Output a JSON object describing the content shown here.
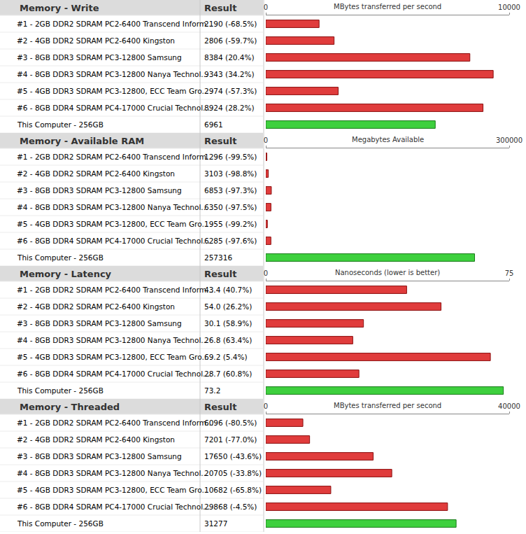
{
  "chart_data": [
    {
      "type": "bar",
      "orientation": "horizontal",
      "title": "Memory - Write",
      "xlabel": "MBytes transferred per second",
      "annotations": [
        "Result"
      ],
      "categories": [
        "#1 - 2GB DDR2 SDRAM PC2-6400 Transcend Inform...",
        "#2 - 4GB DDR2 SDRAM PC2-6400 Kingston",
        "#3 - 8GB DDR3 SDRAM PC3-12800 Samsung",
        "#4 - 8GB DDR3 SDRAM PC3-12800 Nanya Technol...",
        "#5 - 4GB DDR3 SDRAM PC3-12800, ECC Team Gro...",
        "#6 - 8GB DDR4 SDRAM PC4-17000 Crucial Technol...",
        "This Computer - 256GB"
      ],
      "values": [
        2190,
        2806,
        8384,
        9343,
        2974,
        8924,
        6961
      ],
      "value_labels": [
        "2190 (-68.5%)",
        "2806 (-59.7%)",
        "8384 (20.4%)",
        "9343 (34.2%)",
        "2974 (-57.3%)",
        "8924 (28.2%)",
        "6961"
      ],
      "data_labels": true,
      "colors": [
        "#e03c3c",
        "#e03c3c",
        "#e03c3c",
        "#e03c3c",
        "#e03c3c",
        "#e03c3c",
        "#3ed03e"
      ],
      "xlim": [
        0,
        10000
      ],
      "xticks": [
        0,
        10000
      ],
      "grid": false
    },
    {
      "type": "bar",
      "orientation": "horizontal",
      "title": "Memory - Available RAM",
      "xlabel": "Megabytes Available",
      "annotations": [
        "Result"
      ],
      "categories": [
        "#1 - 2GB DDR2 SDRAM PC2-6400 Transcend Inform...",
        "#2 - 4GB DDR2 SDRAM PC2-6400 Kingston",
        "#3 - 8GB DDR3 SDRAM PC3-12800 Samsung",
        "#4 - 8GB DDR3 SDRAM PC3-12800 Nanya Technol...",
        "#5 - 4GB DDR3 SDRAM PC3-12800, ECC Team Gro...",
        "#6 - 8GB DDR4 SDRAM PC4-17000 Crucial Technol...",
        "This Computer - 256GB"
      ],
      "values": [
        1296,
        3103,
        6853,
        6350,
        1955,
        6285,
        257316
      ],
      "value_labels": [
        "1296 (-99.5%)",
        "3103 (-98.8%)",
        "6853 (-97.3%)",
        "6350 (-97.5%)",
        "1955 (-99.2%)",
        "6285 (-97.6%)",
        "257316"
      ],
      "data_labels": true,
      "colors": [
        "#e03c3c",
        "#e03c3c",
        "#e03c3c",
        "#e03c3c",
        "#e03c3c",
        "#e03c3c",
        "#3ed03e"
      ],
      "xlim": [
        0,
        300000
      ],
      "xticks": [
        0,
        300000
      ],
      "grid": false
    },
    {
      "type": "bar",
      "orientation": "horizontal",
      "title": "Memory - Latency",
      "xlabel": "Nanoseconds (lower is better)",
      "annotations": [
        "Result"
      ],
      "categories": [
        "#1 - 2GB DDR2 SDRAM PC2-6400 Transcend Inform...",
        "#2 - 4GB DDR2 SDRAM PC2-6400 Kingston",
        "#3 - 8GB DDR3 SDRAM PC3-12800 Samsung",
        "#4 - 8GB DDR3 SDRAM PC3-12800 Nanya Technol...",
        "#5 - 4GB DDR3 SDRAM PC3-12800, ECC Team Gro...",
        "#6 - 8GB DDR4 SDRAM PC4-17000 Crucial Technol...",
        "This Computer - 256GB"
      ],
      "values": [
        43.4,
        54.0,
        30.1,
        26.8,
        69.2,
        28.7,
        73.2
      ],
      "value_labels": [
        "43.4 (40.7%)",
        "54.0 (26.2%)",
        "30.1 (58.9%)",
        "26.8 (63.4%)",
        "69.2 (5.4%)",
        "28.7 (60.8%)",
        "73.2"
      ],
      "data_labels": true,
      "colors": [
        "#e03c3c",
        "#e03c3c",
        "#e03c3c",
        "#e03c3c",
        "#e03c3c",
        "#e03c3c",
        "#3ed03e"
      ],
      "xlim": [
        0,
        75
      ],
      "xticks": [
        0,
        75
      ],
      "grid": false
    },
    {
      "type": "bar",
      "orientation": "horizontal",
      "title": "Memory - Threaded",
      "xlabel": "MBytes transferred per second",
      "annotations": [
        "Result"
      ],
      "categories": [
        "#1 - 2GB DDR2 SDRAM PC2-6400 Transcend Inform...",
        "#2 - 4GB DDR2 SDRAM PC2-6400 Kingston",
        "#3 - 8GB DDR3 SDRAM PC3-12800 Samsung",
        "#4 - 8GB DDR3 SDRAM PC3-12800 Nanya Technol...",
        "#5 - 4GB DDR3 SDRAM PC3-12800, ECC Team Gro...",
        "#6 - 8GB DDR4 SDRAM PC4-17000 Crucial Technol...",
        "This Computer - 256GB"
      ],
      "values": [
        6096,
        7201,
        17650,
        20705,
        10682,
        29868,
        31277
      ],
      "value_labels": [
        "6096 (-80.5%)",
        "7201 (-77.0%)",
        "17650 (-43.6%)",
        "20705 (-33.8%)",
        "10682 (-65.8%)",
        "29868 (-4.5%)",
        "31277"
      ],
      "data_labels": true,
      "colors": [
        "#e03c3c",
        "#e03c3c",
        "#e03c3c",
        "#e03c3c",
        "#e03c3c",
        "#e03c3c",
        "#3ed03e"
      ],
      "xlim": [
        0,
        40000
      ],
      "xticks": [
        0,
        40000
      ],
      "grid": false
    }
  ]
}
